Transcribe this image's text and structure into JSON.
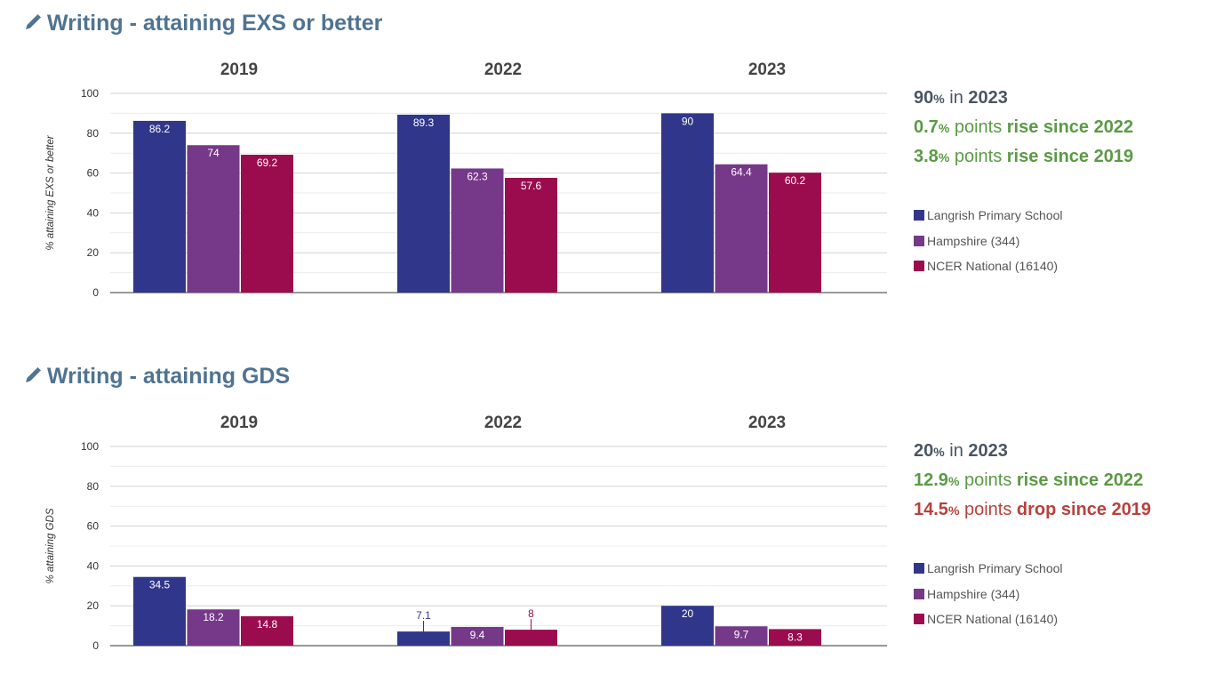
{
  "colors": {
    "title": "#4f7391",
    "school": "#30378a",
    "hampshire": "#763889",
    "national": "#9b0c4e",
    "rise": "#5a9a44",
    "drop": "#b7423c",
    "neutral": "#4a5562"
  },
  "sections": [
    {
      "title": "Writing - attaining EXS or better",
      "icon": "pencil-icon",
      "summary": [
        {
          "value": "90",
          "pct": "%",
          "mid": " in ",
          "tail": "2023",
          "tone": "neutral"
        },
        {
          "value": "0.7",
          "pct": "%",
          "mid": " points ",
          "tail": "rise since 2022",
          "tone": "rise"
        },
        {
          "value": "3.8",
          "pct": "%",
          "mid": " points ",
          "tail": "rise since 2019",
          "tone": "rise"
        }
      ],
      "legend": [
        "Langrish Primary School",
        "Hampshire (344)",
        "NCER National (16140)"
      ],
      "chart_data": {
        "type": "bar",
        "ylabel": "% attaining EXS or better",
        "ylim": [
          0,
          100
        ],
        "yticks": [
          0,
          20,
          40,
          60,
          80,
          100
        ],
        "grid": true,
        "categories": [
          "2019",
          "2022",
          "2023"
        ],
        "series": [
          {
            "name": "Langrish Primary School",
            "values": [
              86.2,
              89.3,
              90
            ]
          },
          {
            "name": "Hampshire (344)",
            "values": [
              74,
              62.3,
              64.4
            ]
          },
          {
            "name": "NCER National (16140)",
            "values": [
              69.2,
              57.6,
              60.2
            ]
          }
        ],
        "legend_position": "right"
      }
    },
    {
      "title": "Writing - attaining GDS",
      "icon": "pencil-icon",
      "summary": [
        {
          "value": "20",
          "pct": "%",
          "mid": " in ",
          "tail": "2023",
          "tone": "neutral"
        },
        {
          "value": "12.9",
          "pct": "%",
          "mid": " points ",
          "tail": "rise since 2022",
          "tone": "rise"
        },
        {
          "value": "14.5",
          "pct": "%",
          "mid": " points ",
          "tail": "drop since 2019",
          "tone": "drop"
        }
      ],
      "legend": [
        "Langrish Primary School",
        "Hampshire (344)",
        "NCER National (16140)"
      ],
      "chart_data": {
        "type": "bar",
        "ylabel": "% attaining GDS",
        "ylim": [
          0,
          100
        ],
        "yticks": [
          0,
          20,
          40,
          60,
          80,
          100
        ],
        "grid": true,
        "categories": [
          "2019",
          "2022",
          "2023"
        ],
        "series": [
          {
            "name": "Langrish Primary School",
            "values": [
              34.5,
              7.1,
              20
            ]
          },
          {
            "name": "Hampshire (344)",
            "values": [
              18.2,
              9.4,
              9.7
            ]
          },
          {
            "name": "NCER National (16140)",
            "values": [
              14.8,
              8,
              8.3
            ]
          }
        ],
        "legend_position": "right"
      }
    }
  ]
}
